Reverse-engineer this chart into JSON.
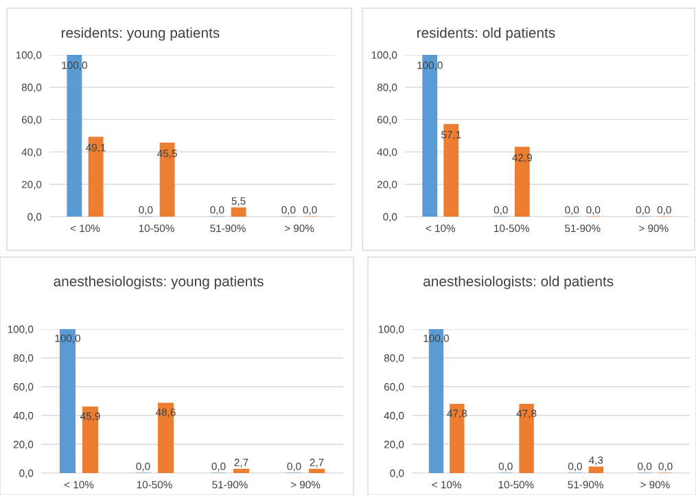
{
  "chart_data": [
    {
      "type": "bar",
      "title": "residents: young patients",
      "categories": [
        "< 10%",
        "10-50%",
        "51-90%",
        "> 90%"
      ],
      "series": [
        {
          "color": "#5b9bd5",
          "values": [
            100,
            0,
            0,
            0
          ],
          "value_labels": [
            "100,0",
            "0,0",
            "0,0",
            "0,0"
          ]
        },
        {
          "color": "#ed7d31",
          "values": [
            49.1,
            45.5,
            5.5,
            0
          ],
          "value_labels": [
            "49,1",
            "45,5",
            "5,5",
            "0,0"
          ]
        }
      ],
      "ylim": [
        0,
        100
      ],
      "yticks": [
        {
          "value": 0,
          "label": "0,0"
        },
        {
          "value": 20,
          "label": "20,0"
        },
        {
          "value": 40,
          "label": "40,0"
        },
        {
          "value": 60,
          "label": "60,0"
        },
        {
          "value": 80,
          "label": "80,0"
        },
        {
          "value": 100,
          "label": "100,0"
        }
      ],
      "grid": "y"
    },
    {
      "type": "bar",
      "title": "residents: old patients",
      "categories": [
        "< 10%",
        "10-50%",
        "51-90%",
        "> 90%"
      ],
      "series": [
        {
          "color": "#5b9bd5",
          "values": [
            100,
            0,
            0,
            0
          ],
          "value_labels": [
            "100,0",
            "0,0",
            "0,0",
            "0,0"
          ]
        },
        {
          "color": "#ed7d31",
          "values": [
            57.1,
            42.9,
            0,
            0
          ],
          "value_labels": [
            "57,1",
            "42,9",
            "0,0",
            "0,0"
          ]
        }
      ],
      "ylim": [
        0,
        100
      ],
      "yticks": [
        {
          "value": 0,
          "label": "0,0"
        },
        {
          "value": 20,
          "label": "20,0"
        },
        {
          "value": 40,
          "label": "40,0"
        },
        {
          "value": 60,
          "label": "60,0"
        },
        {
          "value": 80,
          "label": "80,0"
        },
        {
          "value": 100,
          "label": "100,0"
        }
      ],
      "grid": "y"
    },
    {
      "type": "bar",
      "title": "anesthesiologists: young patients",
      "categories": [
        "< 10%",
        "10-50%",
        "51-90%",
        "> 90%"
      ],
      "series": [
        {
          "color": "#5b9bd5",
          "values": [
            100,
            0,
            0,
            0
          ],
          "value_labels": [
            "100,0",
            "0,0",
            "0,0",
            "0,0"
          ]
        },
        {
          "color": "#ed7d31",
          "values": [
            45.9,
            48.6,
            2.7,
            2.7
          ],
          "value_labels": [
            "45,9",
            "48,6",
            "2,7",
            "2,7"
          ]
        }
      ],
      "ylim": [
        0,
        100
      ],
      "yticks": [
        {
          "value": 0,
          "label": "0,0"
        },
        {
          "value": 20,
          "label": "20,0"
        },
        {
          "value": 40,
          "label": "40,0"
        },
        {
          "value": 60,
          "label": "60,0"
        },
        {
          "value": 80,
          "label": "80,0"
        },
        {
          "value": 100,
          "label": "100,0"
        }
      ],
      "grid": "y"
    },
    {
      "type": "bar",
      "title": "anesthesiologists: old patients",
      "categories": [
        "< 10%",
        "10-50%",
        "51-90%",
        "> 90%"
      ],
      "series": [
        {
          "color": "#5b9bd5",
          "values": [
            100,
            0,
            0,
            0
          ],
          "value_labels": [
            "100,0",
            "0,0",
            "0,0",
            "0,0"
          ]
        },
        {
          "color": "#ed7d31",
          "values": [
            47.8,
            47.8,
            4.3,
            0
          ],
          "value_labels": [
            "47,8",
            "47,8",
            "4,3",
            "0,0"
          ]
        }
      ],
      "ylim": [
        0,
        100
      ],
      "yticks": [
        {
          "value": 0,
          "label": "0,0"
        },
        {
          "value": 20,
          "label": "20,0"
        },
        {
          "value": 40,
          "label": "40,0"
        },
        {
          "value": 60,
          "label": "60,0"
        },
        {
          "value": 80,
          "label": "80,0"
        },
        {
          "value": 100,
          "label": "100,0"
        }
      ],
      "grid": "y"
    }
  ]
}
